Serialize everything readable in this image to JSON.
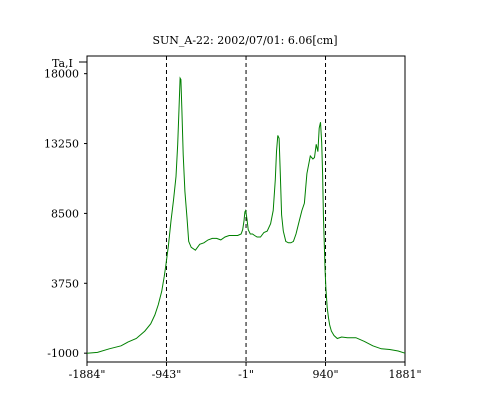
{
  "chart_data": {
    "type": "line",
    "title": "SUN_A-22: 2002/07/01: 6.06[cm]",
    "ylabel": "Ta,I",
    "xlabel": "",
    "x_tick_labels": [
      "-1884\"",
      "-943\"",
      "-1\"",
      "940\"",
      "1881\""
    ],
    "x_ticks": [
      -1884,
      -943,
      -1,
      940,
      1881
    ],
    "xlim": [
      -1884,
      1881
    ],
    "y_tick_labels": [
      "-1000",
      "3750",
      "8500",
      "13250",
      "18000"
    ],
    "y_ticks": [
      -1000,
      3750,
      8500,
      13250,
      18000
    ],
    "ylim": [
      -1600,
      19200
    ],
    "grid": false,
    "dashed_vlines": [
      -943,
      -1,
      940
    ],
    "line_color": "#008000",
    "series": [
      {
        "x": [
          -1884,
          -1760,
          -1620,
          -1480,
          -1400,
          -1300,
          -1200,
          -1130,
          -1080,
          -1040,
          -1000,
          -970,
          -950,
          -920,
          -890,
          -860,
          -830,
          -810,
          -795,
          -782,
          -772,
          -760,
          -745,
          -725,
          -700,
          -680,
          -650,
          -600,
          -550,
          -500,
          -450,
          -400,
          -350,
          -300,
          -250,
          -200,
          -150,
          -100,
          -60,
          -40,
          -25,
          -15,
          -5,
          10,
          25,
          50,
          75,
          100,
          130,
          170,
          210,
          250,
          290,
          320,
          345,
          360,
          375,
          390,
          405,
          420,
          440,
          470,
          500,
          530,
          560,
          590,
          630,
          660,
          690,
          720,
          760,
          790,
          810,
          830,
          850,
          865,
          880,
          895,
          905,
          915,
          925,
          935,
          945,
          960,
          975,
          990,
          1010,
          1040,
          1080,
          1130,
          1200,
          1300,
          1400,
          1500,
          1600,
          1700,
          1800,
          1881
        ],
        "y": [
          -1000,
          -950,
          -700,
          -500,
          -250,
          0,
          500,
          1000,
          1600,
          2300,
          3200,
          4200,
          5000,
          6300,
          8000,
          9400,
          11000,
          13200,
          15600,
          17700,
          17600,
          15500,
          12500,
          10000,
          8200,
          6600,
          6200,
          6000,
          6400,
          6500,
          6700,
          6800,
          6800,
          6700,
          6900,
          7000,
          7000,
          7000,
          7100,
          7400,
          8000,
          8600,
          8700,
          8100,
          7400,
          7100,
          7100,
          7000,
          6900,
          6900,
          7200,
          7300,
          7800,
          8700,
          10800,
          12700,
          13800,
          13600,
          11200,
          8400,
          7300,
          6600,
          6500,
          6500,
          6600,
          7100,
          8000,
          8700,
          9200,
          11200,
          12400,
          12200,
          12300,
          13200,
          12700,
          14300,
          14700,
          13300,
          11200,
          8400,
          6400,
          4600,
          3400,
          2100,
          1400,
          900,
          500,
          200,
          0,
          100,
          50,
          50,
          -200,
          -500,
          -700,
          -750,
          -850,
          -1000
        ]
      }
    ]
  }
}
